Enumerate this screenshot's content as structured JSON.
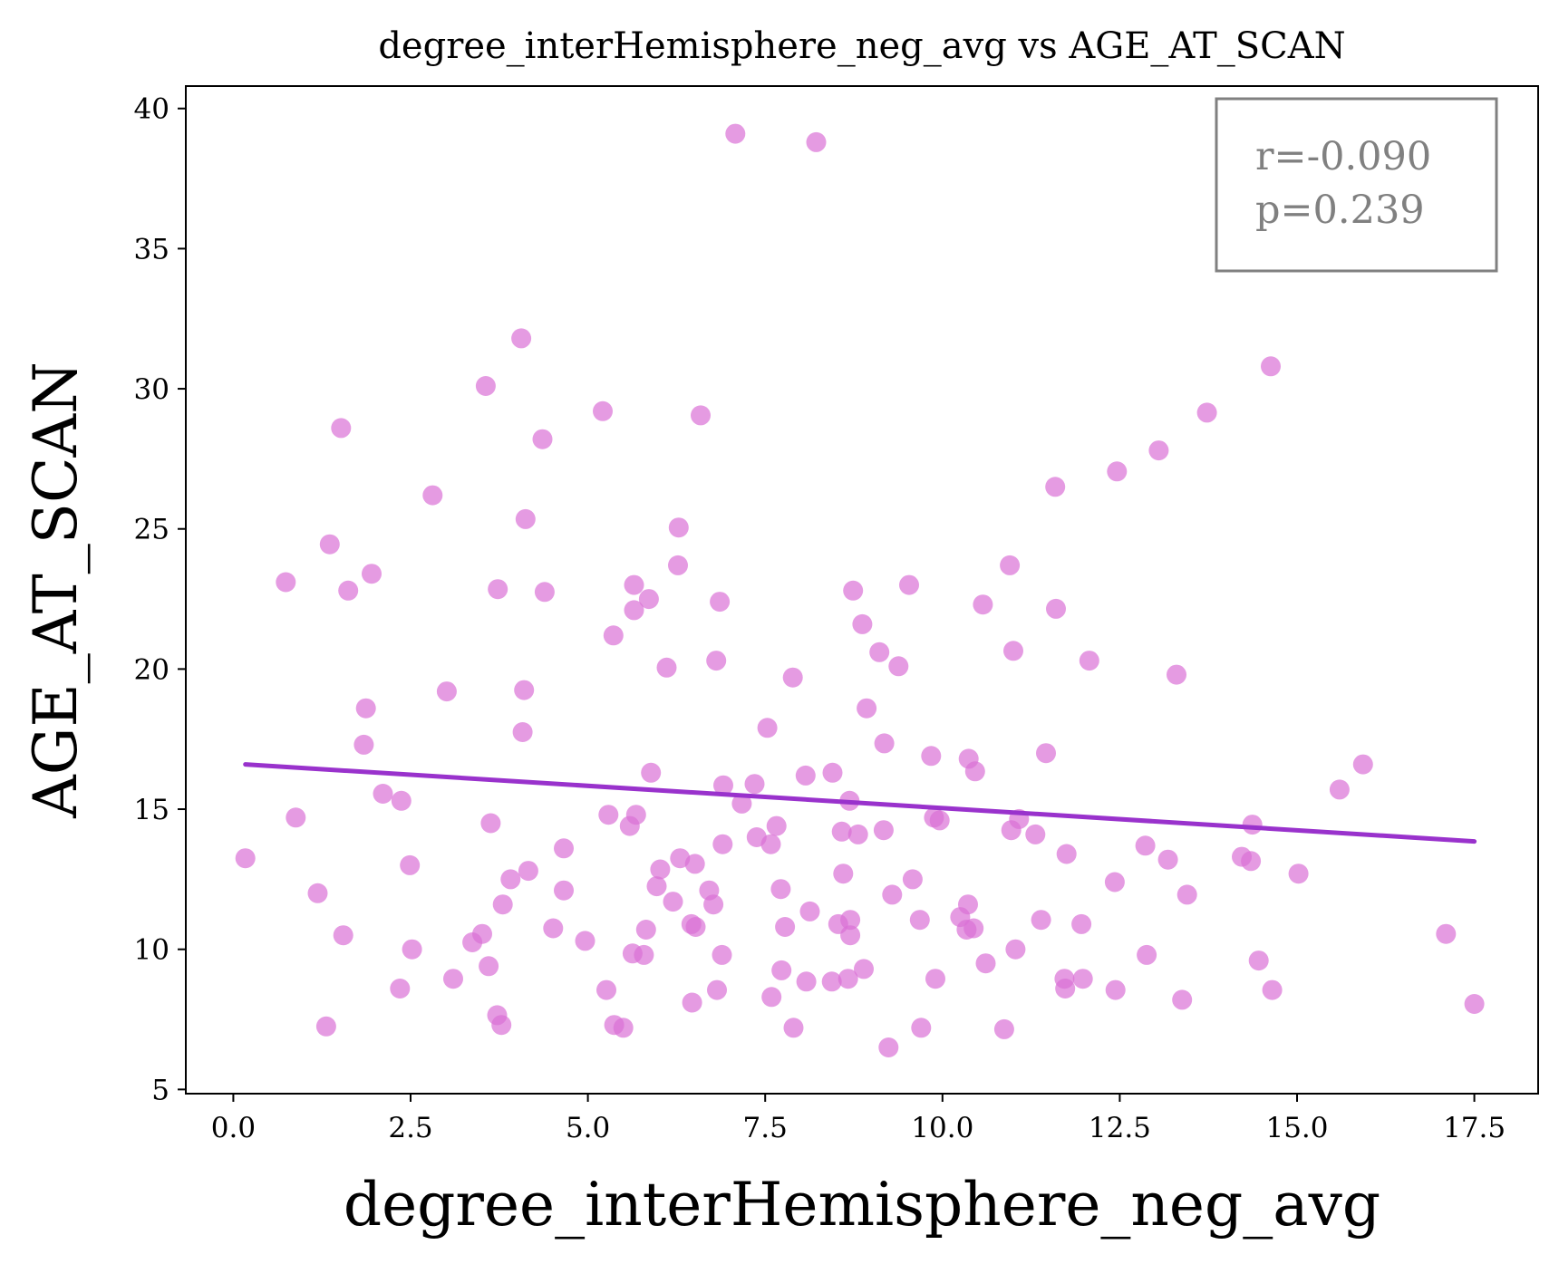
{
  "chart_data": {
    "type": "scatter",
    "title": "degree_interHemisphere_neg_avg vs AGE_AT_SCAN",
    "xlabel": "degree_interHemisphere_neg_avg",
    "ylabel": "AGE_AT_SCAN",
    "xlim": [
      -0.67,
      18.4
    ],
    "ylim": [
      4.85,
      40.8
    ],
    "xticks": [
      0.0,
      2.5,
      5.0,
      7.5,
      10.0,
      12.5,
      15.0,
      17.5
    ],
    "xtick_labels": [
      "0.0",
      "2.5",
      "5.0",
      "7.5",
      "10.0",
      "12.5",
      "15.0",
      "17.5"
    ],
    "yticks": [
      5,
      10,
      15,
      20,
      25,
      30,
      35,
      40
    ],
    "ytick_labels": [
      "5",
      "10",
      "15",
      "20",
      "25",
      "30",
      "35",
      "40"
    ],
    "grid": false,
    "annotation": {
      "r": "r=-0.090",
      "p": "p=0.239"
    },
    "colors": {
      "points": "#DA70D6",
      "fit_line": "#9932CC",
      "annotation_text": "#808080",
      "annotation_border": "#808080"
    },
    "fit_line": {
      "x": [
        0.17,
        17.5
      ],
      "y": [
        16.6,
        13.85
      ]
    },
    "points": [
      [
        0.17,
        13.25
      ],
      [
        0.74,
        23.1
      ],
      [
        0.88,
        14.7
      ],
      [
        1.19,
        12.0
      ],
      [
        1.31,
        7.25
      ],
      [
        1.36,
        24.45
      ],
      [
        1.52,
        28.6
      ],
      [
        1.55,
        10.5
      ],
      [
        1.62,
        22.8
      ],
      [
        1.84,
        17.3
      ],
      [
        1.87,
        18.6
      ],
      [
        1.95,
        23.4
      ],
      [
        2.11,
        15.55
      ],
      [
        2.35,
        8.6
      ],
      [
        2.37,
        15.3
      ],
      [
        2.49,
        13.0
      ],
      [
        2.52,
        10.0
      ],
      [
        2.81,
        26.2
      ],
      [
        3.01,
        19.2
      ],
      [
        3.1,
        8.95
      ],
      [
        3.37,
        10.25
      ],
      [
        3.51,
        10.55
      ],
      [
        3.56,
        30.1
      ],
      [
        3.6,
        9.4
      ],
      [
        3.63,
        14.5
      ],
      [
        3.72,
        7.65
      ],
      [
        3.73,
        22.85
      ],
      [
        3.78,
        7.3
      ],
      [
        3.8,
        11.6
      ],
      [
        3.91,
        12.5
      ],
      [
        4.06,
        31.8
      ],
      [
        4.08,
        17.75
      ],
      [
        4.1,
        19.25
      ],
      [
        4.12,
        25.35
      ],
      [
        4.16,
        12.8
      ],
      [
        4.36,
        28.2
      ],
      [
        4.39,
        22.75
      ],
      [
        4.51,
        10.75
      ],
      [
        4.66,
        13.6
      ],
      [
        4.66,
        12.1
      ],
      [
        4.96,
        10.3
      ],
      [
        5.21,
        29.2
      ],
      [
        5.26,
        8.55
      ],
      [
        5.29,
        14.8
      ],
      [
        5.36,
        21.2
      ],
      [
        5.37,
        7.3
      ],
      [
        5.5,
        7.2
      ],
      [
        5.59,
        14.4
      ],
      [
        5.63,
        9.85
      ],
      [
        5.65,
        23.0
      ],
      [
        5.65,
        22.1
      ],
      [
        5.68,
        14.8
      ],
      [
        5.79,
        9.8
      ],
      [
        5.82,
        10.7
      ],
      [
        5.86,
        22.5
      ],
      [
        5.89,
        16.3
      ],
      [
        5.97,
        12.25
      ],
      [
        6.02,
        12.85
      ],
      [
        6.11,
        20.05
      ],
      [
        6.2,
        11.7
      ],
      [
        6.27,
        23.7
      ],
      [
        6.28,
        25.05
      ],
      [
        6.3,
        13.25
      ],
      [
        6.46,
        10.9
      ],
      [
        6.47,
        8.1
      ],
      [
        6.51,
        13.05
      ],
      [
        6.52,
        10.8
      ],
      [
        6.59,
        29.05
      ],
      [
        6.71,
        12.1
      ],
      [
        6.77,
        11.6
      ],
      [
        6.81,
        20.3
      ],
      [
        6.82,
        8.55
      ],
      [
        6.86,
        22.4
      ],
      [
        6.89,
        9.8
      ],
      [
        6.9,
        13.75
      ],
      [
        6.91,
        15.85
      ],
      [
        7.08,
        39.1
      ],
      [
        7.17,
        15.2
      ],
      [
        7.35,
        15.9
      ],
      [
        7.38,
        14.0
      ],
      [
        7.53,
        17.9
      ],
      [
        7.58,
        13.75
      ],
      [
        7.59,
        8.3
      ],
      [
        7.66,
        14.4
      ],
      [
        7.72,
        12.15
      ],
      [
        7.73,
        9.25
      ],
      [
        7.78,
        10.8
      ],
      [
        7.89,
        19.7
      ],
      [
        7.9,
        7.2
      ],
      [
        8.07,
        16.2
      ],
      [
        8.08,
        8.85
      ],
      [
        8.13,
        11.35
      ],
      [
        8.22,
        38.8
      ],
      [
        8.44,
        8.85
      ],
      [
        8.45,
        16.3
      ],
      [
        8.53,
        10.9
      ],
      [
        8.58,
        14.2
      ],
      [
        8.6,
        12.7
      ],
      [
        8.67,
        8.95
      ],
      [
        8.69,
        15.3
      ],
      [
        8.7,
        11.05
      ],
      [
        8.7,
        10.5
      ],
      [
        8.74,
        22.8
      ],
      [
        8.81,
        14.1
      ],
      [
        8.87,
        21.6
      ],
      [
        8.89,
        9.3
      ],
      [
        8.93,
        18.6
      ],
      [
        9.11,
        20.6
      ],
      [
        9.17,
        14.25
      ],
      [
        9.18,
        17.35
      ],
      [
        9.24,
        6.5
      ],
      [
        9.29,
        11.95
      ],
      [
        9.38,
        20.1
      ],
      [
        9.53,
        23.0
      ],
      [
        9.58,
        12.5
      ],
      [
        9.68,
        11.05
      ],
      [
        9.7,
        7.2
      ],
      [
        9.84,
        16.9
      ],
      [
        9.88,
        14.7
      ],
      [
        9.9,
        8.95
      ],
      [
        9.96,
        14.6
      ],
      [
        10.25,
        11.15
      ],
      [
        10.34,
        10.7
      ],
      [
        10.36,
        11.6
      ],
      [
        10.37,
        16.8
      ],
      [
        10.44,
        10.75
      ],
      [
        10.46,
        16.35
      ],
      [
        10.57,
        22.3
      ],
      [
        10.61,
        9.5
      ],
      [
        10.87,
        7.15
      ],
      [
        10.95,
        23.7
      ],
      [
        10.97,
        14.25
      ],
      [
        11.0,
        20.65
      ],
      [
        11.03,
        10.0
      ],
      [
        11.08,
        14.65
      ],
      [
        11.31,
        14.1
      ],
      [
        11.39,
        11.05
      ],
      [
        11.46,
        17.0
      ],
      [
        11.59,
        26.5
      ],
      [
        11.6,
        22.15
      ],
      [
        11.72,
        8.95
      ],
      [
        11.73,
        8.6
      ],
      [
        11.75,
        13.4
      ],
      [
        11.96,
        10.9
      ],
      [
        11.98,
        8.95
      ],
      [
        12.07,
        20.3
      ],
      [
        12.43,
        12.4
      ],
      [
        12.44,
        8.55
      ],
      [
        12.46,
        27.05
      ],
      [
        12.86,
        13.7
      ],
      [
        12.88,
        9.8
      ],
      [
        13.05,
        27.8
      ],
      [
        13.18,
        13.2
      ],
      [
        13.3,
        19.8
      ],
      [
        13.38,
        8.2
      ],
      [
        13.45,
        11.95
      ],
      [
        13.73,
        29.15
      ],
      [
        14.22,
        13.3
      ],
      [
        14.35,
        13.15
      ],
      [
        14.37,
        14.45
      ],
      [
        14.46,
        9.6
      ],
      [
        14.63,
        30.8
      ],
      [
        14.65,
        8.55
      ],
      [
        15.02,
        12.7
      ],
      [
        15.6,
        15.7
      ],
      [
        15.93,
        16.6
      ],
      [
        17.1,
        10.55
      ],
      [
        17.5,
        8.05
      ]
    ]
  }
}
